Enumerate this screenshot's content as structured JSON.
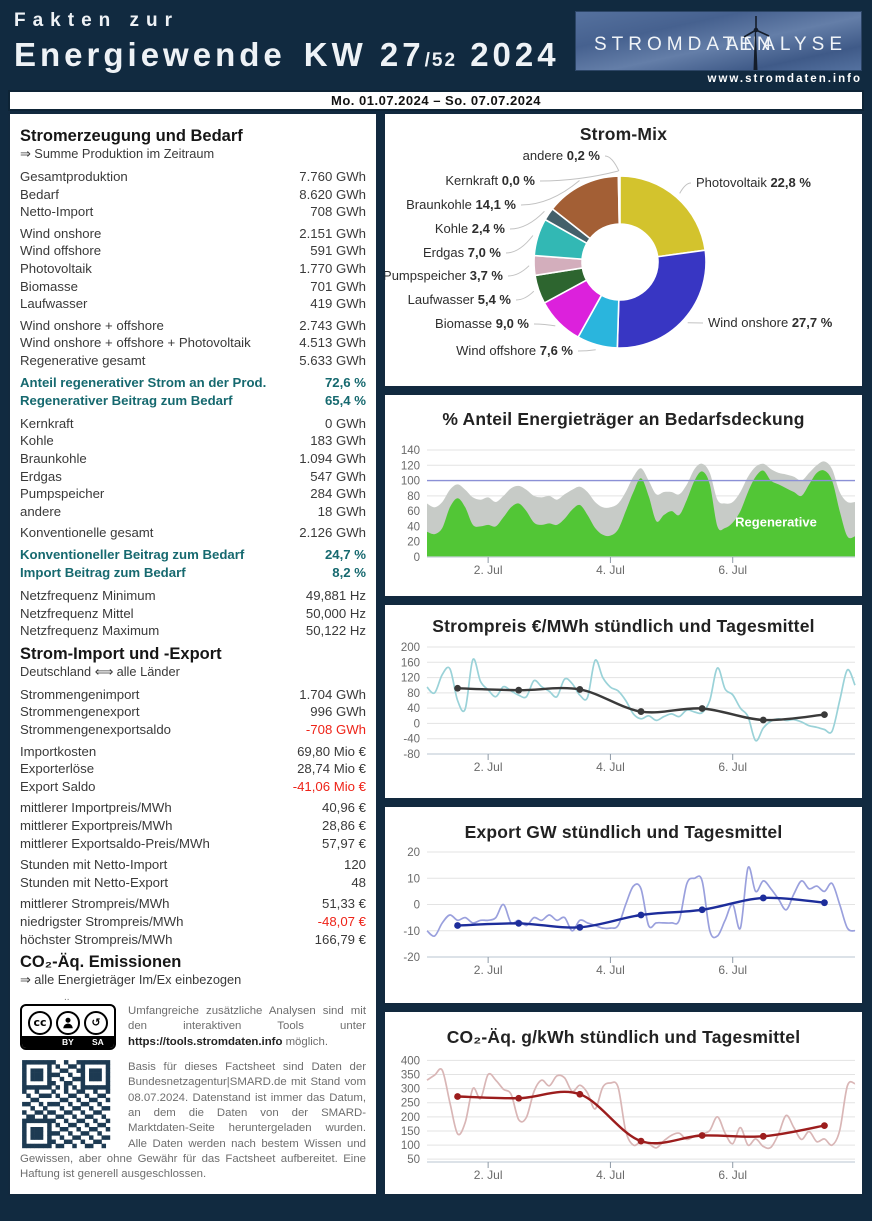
{
  "header": {
    "title_line1": "Fakten zur",
    "title_word": "Energiewende",
    "week": "KW 27",
    "week_divisor": "/52",
    "year": "2024",
    "logo_left": "STROMDATEN",
    "logo_right": "ANALYSE",
    "website": "www.stromdaten.info",
    "colors": {
      "navy": "#112a40",
      "accent_teal": "#16696f",
      "negative_red": "#ee2318"
    }
  },
  "date_bar": {
    "range": "Mo. 01.07.2024 – So. 07.07.2024"
  },
  "left_column": [
    {
      "type": "heading",
      "text": "Stromerzeugung und Bedarf",
      "sub": "⇒ Summe Produktion im Zeitraum"
    },
    {
      "type": "group",
      "rows": [
        {
          "label": "Gesamtproduktion",
          "value": "7.760 GWh"
        },
        {
          "label": "Bedarf",
          "value": "8.620 GWh"
        },
        {
          "label": "Netto-Import",
          "value": "708 GWh"
        }
      ]
    },
    {
      "type": "group",
      "rows": [
        {
          "label": "Wind onshore",
          "value": "2.151 GWh"
        },
        {
          "label": "Wind offshore",
          "value": "591 GWh"
        },
        {
          "label": "Photovoltaik",
          "value": "1.770 GWh"
        },
        {
          "label": "Biomasse",
          "value": "701 GWh"
        },
        {
          "label": "Laufwasser",
          "value": "419 GWh"
        }
      ]
    },
    {
      "type": "group",
      "rows": [
        {
          "label": "Wind onshore + offshore",
          "value": "2.743 GWh"
        },
        {
          "label": "Wind onshore + offshore + Photovoltaik",
          "value": "4.513 GWh"
        },
        {
          "label": "Regenerative gesamt",
          "value": "5.633 GWh"
        }
      ]
    },
    {
      "type": "group",
      "accent": true,
      "rows": [
        {
          "label": "Anteil regenerativer Strom an der Prod.",
          "value": "72,6 %"
        },
        {
          "label": "Regenerativer Beitrag zum Bedarf",
          "value": "65,4 %"
        }
      ]
    },
    {
      "type": "group",
      "rows": [
        {
          "label": "Kernkraft",
          "value": "0 GWh"
        },
        {
          "label": "Kohle",
          "value": "183 GWh"
        },
        {
          "label": "Braunkohle",
          "value": "1.094 GWh"
        },
        {
          "label": "Erdgas",
          "value": "547 GWh"
        },
        {
          "label": "Pumpspeicher",
          "value": "284 GWh"
        },
        {
          "label": "andere",
          "value": "18 GWh"
        }
      ]
    },
    {
      "type": "group",
      "rows": [
        {
          "label": "Konventionelle gesamt",
          "value": "2.126 GWh"
        }
      ]
    },
    {
      "type": "group",
      "accent": true,
      "rows": [
        {
          "label": "Konventioneller Beitrag zum Bedarf",
          "value": "24,7 %"
        },
        {
          "label": "Import Beitrag zum Bedarf",
          "value": "8,2 %"
        }
      ]
    },
    {
      "type": "group",
      "rows": [
        {
          "label": "Netzfrequenz Minimum",
          "value": "49,881 Hz"
        },
        {
          "label": "Netzfrequenz Mittel",
          "value": "50,000 Hz"
        },
        {
          "label": "Netzfrequenz Maximum",
          "value": "50,122 Hz"
        }
      ]
    },
    {
      "type": "heading",
      "text": "Strom-Import und -Export",
      "sub": "Deutschland ⟺ alle Länder"
    },
    {
      "type": "group",
      "rows": [
        {
          "label": "Strommengenimport",
          "value": "1.704 GWh"
        },
        {
          "label": "Strommengenexport",
          "value": "996 GWh"
        },
        {
          "label": "Strommengenexportsaldo",
          "value": "-708 GWh",
          "neg": true
        }
      ]
    },
    {
      "type": "group",
      "rows": [
        {
          "label": "Importkosten",
          "value": "69,80 Mio €"
        },
        {
          "label": "Exporterlöse",
          "value": "28,74 Mio €"
        },
        {
          "label": "Export Saldo",
          "value": "-41,06 Mio €",
          "neg": true
        }
      ]
    },
    {
      "type": "group",
      "rows": [
        {
          "label": "mittlerer Importpreis/MWh",
          "value": "40,96 €"
        },
        {
          "label": "mittlerer Exportpreis/MWh",
          "value": "28,86 €"
        },
        {
          "label": "mittlerer Exportsaldo-Preis/MWh",
          "value": "57,97 €"
        }
      ]
    },
    {
      "type": "group",
      "rows": [
        {
          "label": "Stunden mit Netto-Import",
          "value": "120"
        },
        {
          "label": "Stunden mit Netto-Export",
          "value": "48"
        }
      ]
    },
    {
      "type": "group",
      "rows": [
        {
          "label": "mittlerer Strompreis/MWh",
          "value": "51,33 €"
        },
        {
          "label": "niedrigster Strompreis/MWh",
          "value": "-48,07 €",
          "neg": true
        },
        {
          "label": "höchster Strompreis/MWh",
          "value": "166,79 €"
        }
      ]
    },
    {
      "type": "heading",
      "text": "CO₂-Äq. Emissionen",
      "sub": "⇒ alle Energieträger Im/Ex einbezogen"
    }
  ],
  "footer": {
    "stray": "..",
    "cc_by": "BY",
    "cc_sa": "SA",
    "para1_pre": "Umfangreiche zusätzliche Analysen sind mit den interaktiven Tools unter ",
    "para1_link": "https://tools.stromdaten.info",
    "para1_post": " möglich.",
    "para2": "Basis für dieses Factsheet sind Daten der Bundesnetzagentur|SMARD.de mit Stand vom 08.07.2024. Datenstand ist immer das Datum, an dem die Daten von der SMARD-Marktdaten-Seite heruntergeladen wurden. Alle Daten werden nach bestem Wissen und Gewissen, aber ohne Gewähr für das Factsheet aufbereitet. Eine Haftung ist generell ausgeschlossen."
  },
  "chart_data": [
    {
      "type": "pie",
      "donut": true,
      "title": "Strom-Mix",
      "slices": [
        {
          "label": "Photovoltaik",
          "value": 22.8,
          "display": "22,8 %",
          "color": "#d3c32d"
        },
        {
          "label": "Wind onshore",
          "value": 27.7,
          "display": "27,7 %",
          "color": "#3836c3"
        },
        {
          "label": "Wind offshore",
          "value": 7.6,
          "display": "7,6 %",
          "color": "#2ab5dd"
        },
        {
          "label": "Biomasse",
          "value": 9.0,
          "display": "9,0 %",
          "color": "#dc21dc"
        },
        {
          "label": "Laufwasser",
          "value": 5.4,
          "display": "5,4 %",
          "color": "#2d652f"
        },
        {
          "label": "Pumpspeicher",
          "value": 3.7,
          "display": "3,7 %",
          "color": "#d3aebc"
        },
        {
          "label": "Erdgas",
          "value": 7.0,
          "display": "7,0 %",
          "color": "#32b8b4"
        },
        {
          "label": "Kohle",
          "value": 2.4,
          "display": "2,4 %",
          "color": "#44606a"
        },
        {
          "label": "Braunkohle",
          "value": 14.1,
          "display": "14,1 %",
          "color": "#a35f35"
        },
        {
          "label": "Kernkraft",
          "value": 0.0,
          "display": "0,0 %",
          "color": "#8a8a8a"
        },
        {
          "label": "andere",
          "value": 0.2,
          "display": "0,2 %",
          "color": "#9b9b9b"
        }
      ]
    },
    {
      "type": "area",
      "title": "% Anteil Energieträger an Bedarfsdeckung",
      "ylim": [
        0,
        140
      ],
      "yticks": [
        0,
        20,
        40,
        60,
        80,
        100,
        120,
        140
      ],
      "x_tick_labels": [
        "2. Jul",
        "4. Jul",
        "6. Jul"
      ],
      "reference_line": 100,
      "annotation": "Regenerative",
      "series": [
        {
          "name": "Gesamtproduktion",
          "color": "#c7cbc7",
          "fill": true,
          "values": [
            70,
            65,
            72,
            88,
            95,
            88,
            78,
            75,
            78,
            72,
            80,
            90,
            93,
            88,
            80,
            78,
            80,
            75,
            82,
            88,
            92,
            85,
            72,
            65,
            65,
            70,
            85,
            105,
            116,
            100,
            82,
            85,
            85,
            82,
            95,
            115,
            122,
            110,
            75,
            70,
            72,
            85,
            105,
            118,
            122,
            115,
            110,
            108,
            105,
            100,
            110,
            120,
            125,
            115,
            85,
            72,
            72
          ]
        },
        {
          "name": "Regenerative",
          "color": "#52c636",
          "fill": true,
          "values": [
            33,
            30,
            38,
            65,
            77,
            65,
            42,
            40,
            42,
            40,
            52,
            65,
            70,
            60,
            45,
            42,
            44,
            42,
            50,
            62,
            68,
            55,
            38,
            29,
            28,
            36,
            60,
            85,
            103,
            80,
            47,
            55,
            60,
            55,
            75,
            100,
            112,
            95,
            40,
            38,
            45,
            60,
            85,
            105,
            113,
            100,
            95,
            90,
            85,
            80,
            95,
            110,
            113,
            100,
            60,
            27,
            27
          ]
        }
      ]
    },
    {
      "type": "line",
      "title": "Strompreis €/MWh stündlich und Tagesmittel",
      "ylim": [
        -80,
        200
      ],
      "yticks": [
        -80,
        -40,
        0,
        40,
        80,
        120,
        160,
        200
      ],
      "x_tick_labels": [
        "2. Jul",
        "4. Jul",
        "6. Jul"
      ],
      "series": [
        {
          "name": "stündlich",
          "color": "#9ad2d8",
          "values": [
            95,
            80,
            128,
            143,
            60,
            38,
            167,
            110,
            88,
            70,
            96,
            85,
            74,
            70,
            112,
            96,
            84,
            70,
            116,
            104,
            74,
            68,
            165,
            120,
            95,
            85,
            60,
            25,
            12,
            20,
            8,
            18,
            25,
            18,
            35,
            30,
            28,
            60,
            145,
            90,
            75,
            40,
            18,
            -45,
            -12,
            6,
            12,
            8,
            10,
            4,
            -6,
            -10,
            -16,
            -20,
            60,
            140,
            100
          ]
        },
        {
          "name": "Tagesmittel",
          "color": "#3a3a3a",
          "daily": true,
          "dots": true,
          "values": [
            92,
            87,
            89,
            31,
            39,
            9,
            23
          ]
        }
      ]
    },
    {
      "type": "line",
      "title": "Export GW stündlich und Tagesmittel",
      "ylim": [
        -20,
        20
      ],
      "yticks": [
        -20,
        -10,
        0,
        10,
        20
      ],
      "x_tick_labels": [
        "2. Jul",
        "4. Jul",
        "6. Jul"
      ],
      "series": [
        {
          "name": "stündlich",
          "color": "#9aa0dd",
          "values": [
            -10,
            -12,
            -7,
            -4,
            -6,
            -5,
            -7,
            -6,
            -6,
            -5,
            0,
            -7,
            -6,
            -8,
            -5,
            -6,
            -4,
            -6,
            -5,
            -10,
            -6,
            -7,
            -8,
            -9,
            -9,
            -8,
            0,
            7,
            6,
            -8,
            -7,
            -7,
            -7,
            -6,
            8,
            10,
            9,
            -10,
            -12,
            -6,
            0,
            -9,
            14,
            5,
            9,
            6,
            2,
            -2,
            4,
            9,
            6,
            7,
            5,
            8,
            0,
            -9,
            -10
          ]
        },
        {
          "name": "Tagesmittel",
          "color": "#1d2d9b",
          "daily": true,
          "dots": true,
          "values": [
            -8,
            -7.2,
            -8.7,
            -4,
            -2,
            2.5,
            0.7
          ]
        }
      ]
    },
    {
      "type": "line",
      "title": "CO₂-Äq. g/kWh stündlich und Tagesmittel",
      "ylim": [
        40,
        405
      ],
      "yticks": [
        50,
        100,
        150,
        200,
        250,
        300,
        350,
        400
      ],
      "x_tick_labels": [
        "2. Jul",
        "4. Jul",
        "6. Jul"
      ],
      "series": [
        {
          "name": "stündlich",
          "color": "#d9b6b6",
          "values": [
            330,
            348,
            365,
            250,
            140,
            180,
            300,
            265,
            350,
            330,
            298,
            280,
            190,
            198,
            290,
            330,
            310,
            345,
            338,
            290,
            312,
            285,
            228,
            305,
            320,
            305,
            150,
            100,
            112,
            105,
            90,
            115,
            135,
            142,
            120,
            132,
            140,
            152,
            200,
            142,
            105,
            162,
            100,
            122,
            95,
            92,
            140,
            205,
            162,
            120,
            148,
            112,
            122,
            100,
            152,
            310,
            318
          ]
        },
        {
          "name": "Tagesmittel",
          "color": "#9c1d1d",
          "daily": true,
          "dots": true,
          "values": [
            272,
            266,
            280,
            114,
            134,
            131,
            169
          ]
        }
      ]
    }
  ]
}
